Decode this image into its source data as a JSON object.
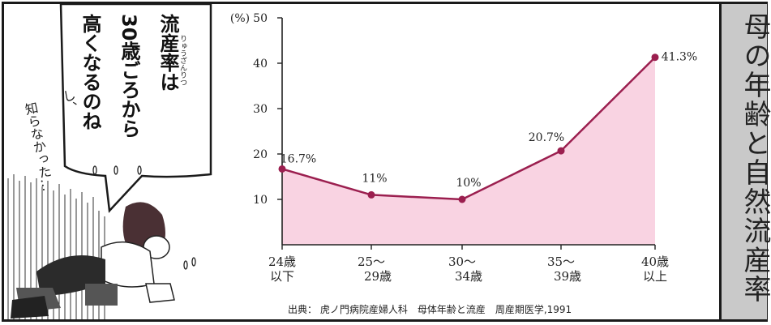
{
  "panel_title": "母の年齢と自然流産率",
  "speech": {
    "lines": [
      "流産率は",
      "30歳ごろから",
      "高くなるのね"
    ],
    "ruby": "りゅうざんりつ"
  },
  "thought": {
    "lines": [
      "知らなかった…",
      "し、"
    ]
  },
  "source": "出典： 虎ノ門病院産婦人科　母体年齢と流産　周産期医学,1991",
  "colors": {
    "line": "#9b1f4f",
    "fill": "#f9d3e2",
    "axis": "#222222",
    "side_bg": "#c9c9c9"
  },
  "chart_data": {
    "type": "area",
    "unit_label": "(%)",
    "categories": [
      "24歳以下",
      "25～29歳",
      "30～34歳",
      "35～39歳",
      "40歳以上"
    ],
    "category_lines": [
      [
        "24歳",
        "以下"
      ],
      [
        "25～",
        "29歳"
      ],
      [
        "30～",
        "34歳"
      ],
      [
        "35～",
        "39歳"
      ],
      [
        "40歳",
        "以上"
      ]
    ],
    "values": [
      16.7,
      11,
      10,
      20.7,
      41.3
    ],
    "data_labels": [
      "16.7%",
      "11%",
      "10%",
      "20.7%",
      "41.3%"
    ],
    "yticks": [
      10,
      20,
      30,
      40,
      50
    ],
    "ylim": [
      0,
      50
    ],
    "grid": false,
    "legend": "none"
  }
}
